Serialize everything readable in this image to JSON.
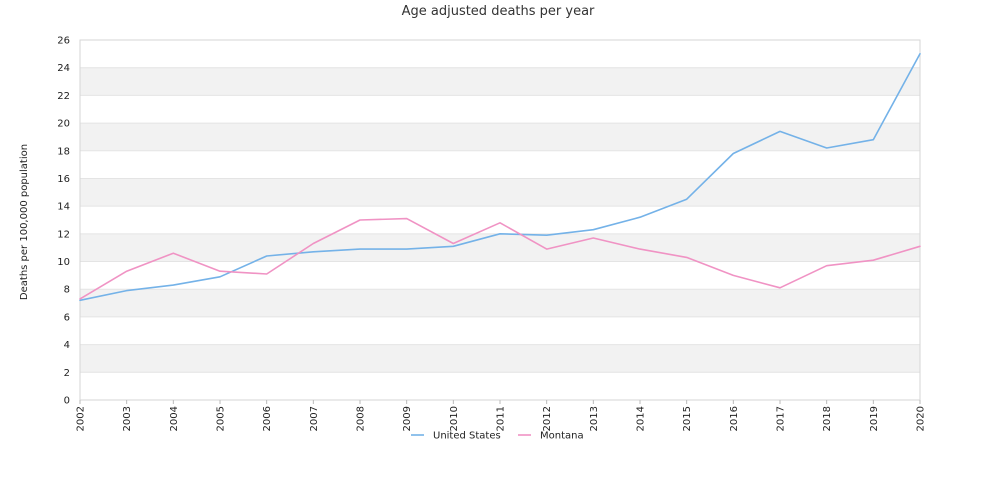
{
  "chart_data": {
    "type": "line",
    "title": "Age adjusted deaths per year",
    "xlabel": "",
    "ylabel": "Deaths per 100,000 population",
    "x": [
      "2002",
      "2003",
      "2004",
      "2005",
      "2006",
      "2007",
      "2008",
      "2009",
      "2010",
      "2011",
      "2012",
      "2013",
      "2014",
      "2015",
      "2016",
      "2017",
      "2018",
      "2019",
      "2020"
    ],
    "ylim": [
      0,
      26
    ],
    "yticks": [
      0,
      2,
      4,
      6,
      8,
      10,
      12,
      14,
      16,
      18,
      20,
      22,
      24,
      26
    ],
    "grid": true,
    "legend_position": "bottom-center",
    "series": [
      {
        "name": "United States",
        "color": "#74b2e8",
        "values": [
          7.2,
          7.9,
          8.3,
          8.9,
          10.4,
          10.7,
          10.9,
          10.9,
          11.1,
          12.0,
          11.9,
          12.3,
          13.2,
          14.5,
          17.8,
          19.4,
          18.2,
          18.8,
          25.0
        ]
      },
      {
        "name": "Montana",
        "color": "#f093c4",
        "values": [
          7.3,
          9.3,
          10.6,
          9.3,
          9.1,
          11.3,
          13.0,
          13.1,
          11.3,
          12.8,
          10.9,
          11.7,
          10.9,
          10.3,
          9.0,
          8.1,
          9.7,
          10.1,
          11.1
        ]
      }
    ]
  }
}
